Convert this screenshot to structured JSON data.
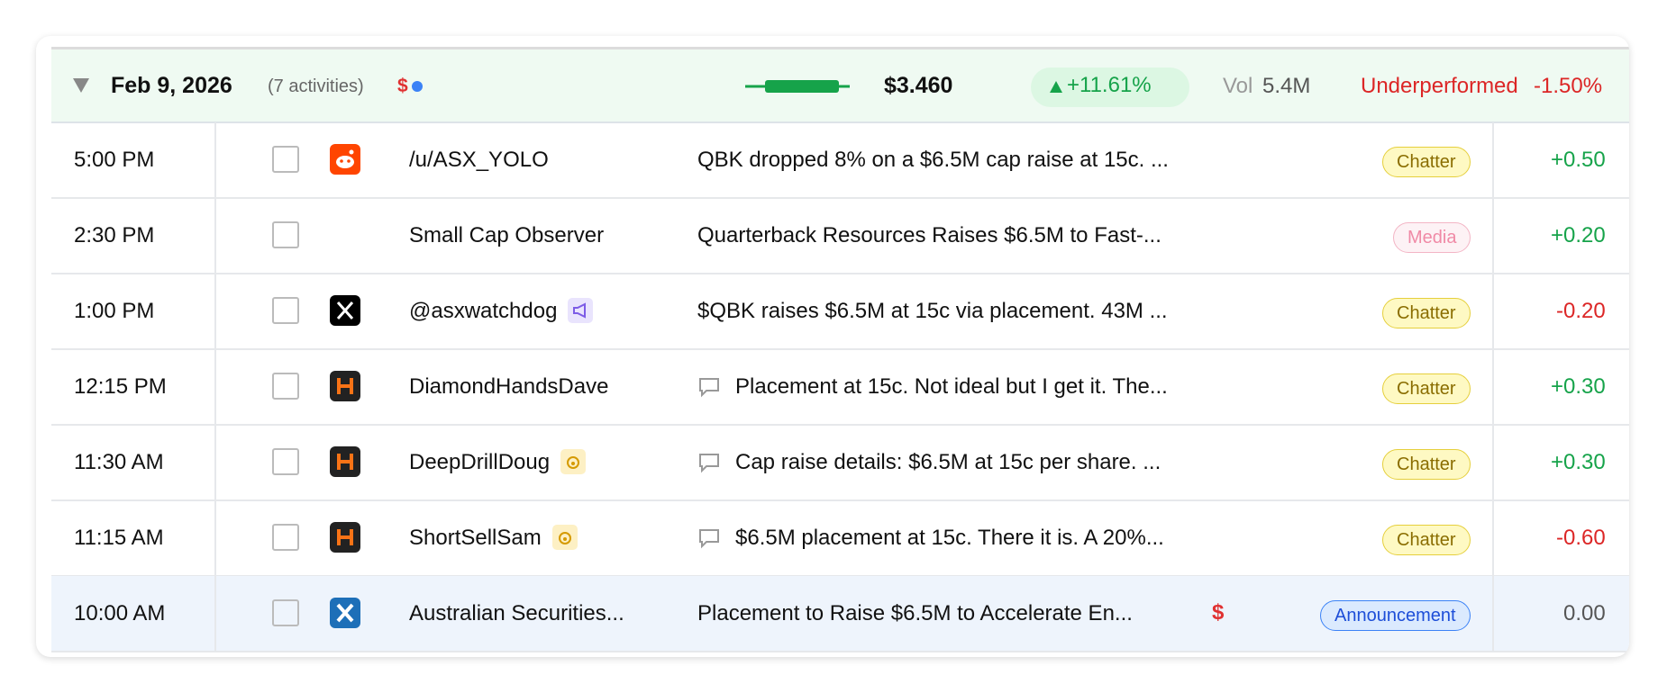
{
  "header": {
    "date": "Feb 9, 2026",
    "activities": "(7 activities)",
    "flag": "$",
    "price": "$3.460",
    "change": "+11.61%",
    "vol_label": "Vol",
    "vol": "5.4M",
    "perf_label": "Underperformed",
    "perf": "-1.50%"
  },
  "rows": [
    {
      "time": "5:00 PM",
      "source": "/u/ASX_YOLO",
      "text": "QBK dropped 8% on a $6.5M cap raise at 15c. ...",
      "tag": "Chatter",
      "score": "+0.50"
    },
    {
      "time": "2:30 PM",
      "source": "Small Cap Observer",
      "text": "Quarterback Resources Raises $6.5M to Fast-...",
      "tag": "Media",
      "score": "+0.20"
    },
    {
      "time": "1:00 PM",
      "source": "@asxwatchdog",
      "text": "$QBK raises $6.5M at 15c via placement. 43M ...",
      "tag": "Chatter",
      "score": "-0.20"
    },
    {
      "time": "12:15 PM",
      "source": "DiamondHandsDave",
      "text": "Placement at 15c. Not ideal but I get it. The...",
      "tag": "Chatter",
      "score": "+0.30"
    },
    {
      "time": "11:30 AM",
      "source": "DeepDrillDoug",
      "text": "Cap raise details: $6.5M at 15c per share. ...",
      "tag": "Chatter",
      "score": "+0.30"
    },
    {
      "time": "11:15 AM",
      "source": "ShortSellSam",
      "text": "$6.5M placement at 15c. There it is. A 20%...",
      "tag": "Chatter",
      "score": "-0.60"
    },
    {
      "time": "10:00 AM",
      "source": "Australian Securities...",
      "text": "Placement to Raise $6.5M to Accelerate En...",
      "flag": "$",
      "tag": "Announcement",
      "score": "0.00"
    }
  ]
}
